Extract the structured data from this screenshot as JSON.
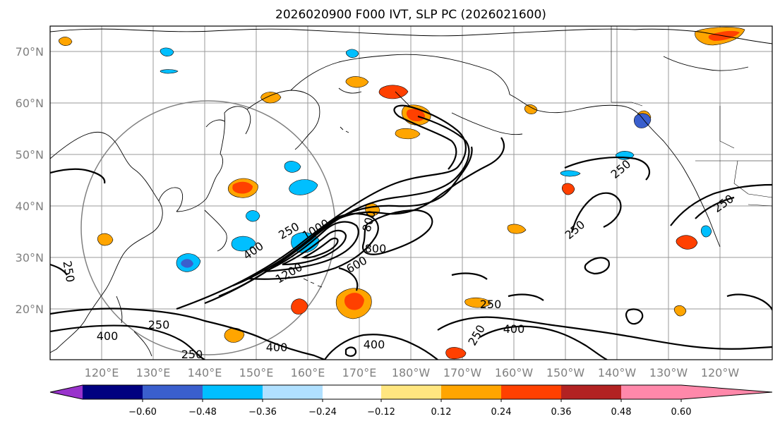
{
  "title": "2026020900 F000 IVT, SLP PC (2026021600)",
  "lat_labels": [
    "70°N",
    "60°N",
    "50°N",
    "40°N",
    "30°N",
    "20°N"
  ],
  "lon_labels": [
    "120°E",
    "130°E",
    "140°E",
    "150°E",
    "160°E",
    "170°E",
    "180°W",
    "170°W",
    "160°W",
    "150°W",
    "140°W",
    "130°W",
    "120°W"
  ],
  "colorbar": {
    "ticks": [
      "−0.60",
      "−0.48",
      "−0.36",
      "−0.24",
      "−0.12",
      "0.12",
      "0.24",
      "0.36",
      "0.48",
      "0.60"
    ],
    "colors": [
      "#9933cc",
      "#000080",
      "#3a5fcd",
      "#00bfff",
      "#b0e0ff",
      "#ffffff",
      "#ffe680",
      "#ffa500",
      "#ff4000",
      "#b22222",
      "#ff88aa"
    ]
  },
  "contour_labels": [
    "250",
    "400",
    "250",
    "400",
    "1000",
    "1200",
    "600",
    "800",
    "400",
    "800",
    "250",
    "400",
    "250",
    "400",
    "250",
    "250",
    "250",
    "250",
    "250"
  ]
}
